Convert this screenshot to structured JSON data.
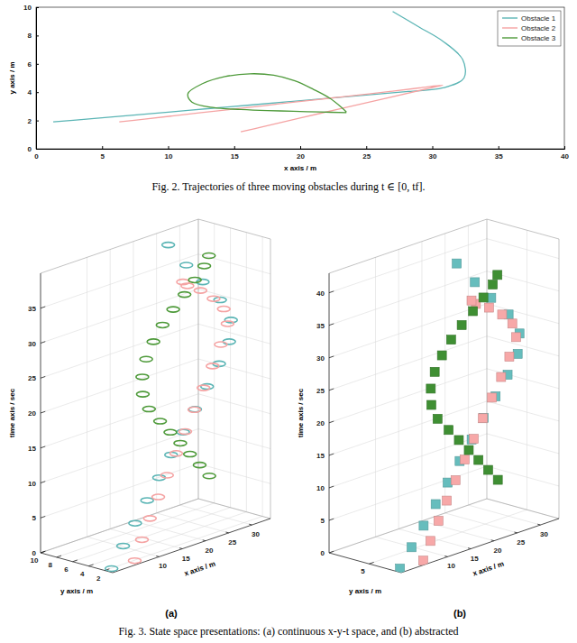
{
  "chart_data": [
    {
      "type": "line",
      "title": "Fig. 2. Trajectories of three moving obstacles during t ∈ [0, tf].",
      "x_label": "x axis / m",
      "y_label": "y axis / m",
      "xlim": [
        0,
        40
      ],
      "xticks": [
        0,
        5,
        10,
        15,
        20,
        25,
        30,
        35,
        40
      ],
      "ylim": [
        0,
        10
      ],
      "yticks": [
        0,
        2,
        4,
        6,
        8,
        10
      ],
      "legend": "top-right",
      "series": [
        {
          "name": "Obstacle 1",
          "color": "#5bb5b5",
          "x": [
            1.3,
            4.2,
            7.2,
            10.2,
            13.2,
            16.2,
            19.2,
            22.2,
            25.2,
            28.2,
            30.8,
            32.4,
            32.3,
            30.8,
            29.0,
            27.0
          ],
          "values": [
            1.9,
            2.13,
            2.37,
            2.61,
            2.85,
            3.09,
            3.33,
            3.57,
            3.81,
            4.05,
            4.3,
            5.0,
            6.3,
            7.6,
            8.6,
            9.7
          ]
        },
        {
          "name": "Obstacle 2",
          "color": "#f5a3a3",
          "x": [
            6.3,
            8.2,
            10.3,
            12.5,
            14.8,
            17.2,
            19.6,
            22.0,
            24.4,
            26.8,
            29.0,
            30.8,
            29.5,
            26.0,
            21.5,
            17.0,
            15.5
          ],
          "values": [
            1.9,
            2.1,
            2.32,
            2.55,
            2.79,
            3.04,
            3.3,
            3.55,
            3.8,
            4.05,
            4.3,
            4.5,
            4.22,
            3.46,
            2.5,
            1.52,
            1.2
          ]
        },
        {
          "name": "Obstacle 3",
          "color": "#4e9a3a",
          "x": [
            23.5,
            21.5,
            19.5,
            17.5,
            15.5,
            13.5,
            11.8,
            11.5,
            12.6,
            14.3,
            16.2,
            18.0,
            19.6,
            21.0,
            22.2,
            23.1,
            23.5
          ],
          "values": [
            2.55,
            2.6,
            2.65,
            2.7,
            2.78,
            2.9,
            3.3,
            3.9,
            4.6,
            5.1,
            5.3,
            5.2,
            4.8,
            4.2,
            3.6,
            2.95,
            2.6
          ]
        }
      ]
    },
    {
      "type": "scatter3d",
      "title": "Fig. 3. State space presentations: (a) continuous x-y-t space, and (b) abstracted",
      "panel": "(a)",
      "x_label": "x axis / m",
      "y_label": "y axis / m",
      "z_label": "time axis / sec",
      "xlim": [
        0,
        34
      ],
      "xticks": [
        10,
        15,
        20,
        25,
        30
      ],
      "ylim": [
        1,
        10
      ],
      "yticks": [
        2,
        4,
        6,
        8,
        10
      ],
      "zlim": [
        0,
        40
      ],
      "zticks": [
        0,
        5,
        10,
        15,
        20,
        25,
        30,
        35
      ],
      "marker": "circle",
      "series": [
        {
          "color": "#5bb5b5",
          "x": [
            1.3,
            4.2,
            7.2,
            10.2,
            13.2,
            16.2,
            19.2,
            22.2,
            25.2,
            28.2,
            30.8,
            32.4,
            32.3,
            30.8,
            29.0,
            27.0
          ],
          "y": [
            1.9,
            2.13,
            2.37,
            2.61,
            2.85,
            3.09,
            3.33,
            3.57,
            3.81,
            4.05,
            4.3,
            5.0,
            6.3,
            7.6,
            8.6,
            9.7
          ],
          "z": [
            0,
            2.5,
            5,
            7.5,
            10,
            12.5,
            15,
            17.5,
            20,
            22.5,
            25,
            27.5,
            30,
            32.5,
            35,
            38
          ]
        },
        {
          "color": "#f5a3a3",
          "x": [
            6.3,
            8.2,
            10.3,
            12.5,
            14.8,
            17.2,
            19.6,
            22.0,
            24.4,
            26.8,
            29.0,
            30.8,
            29.5,
            26.0,
            21.5,
            17.0,
            15.5
          ],
          "y": [
            1.9,
            2.1,
            2.32,
            2.55,
            2.79,
            3.04,
            3.3,
            3.55,
            3.8,
            4.05,
            4.3,
            4.5,
            4.22,
            3.46,
            2.5,
            1.52,
            1.2
          ],
          "z": [
            0,
            2.5,
            5,
            7.5,
            10,
            12.5,
            15,
            17.5,
            20,
            22.5,
            25,
            27.5,
            30,
            32.5,
            35,
            37,
            38
          ]
        },
        {
          "color": "#4e9a3a",
          "x": [
            23.5,
            21.5,
            19.5,
            17.5,
            15.5,
            13.5,
            11.8,
            11.5,
            12.6,
            14.3,
            16.2,
            18.0,
            19.6,
            21.0,
            22.2,
            23.1,
            23.5
          ],
          "y": [
            2.55,
            2.6,
            2.65,
            2.7,
            2.78,
            2.9,
            3.3,
            3.9,
            4.6,
            5.1,
            5.3,
            5.2,
            4.8,
            4.2,
            3.6,
            2.95,
            2.6
          ],
          "z": [
            8,
            10,
            12,
            14,
            16,
            18,
            20,
            22,
            24,
            26,
            28,
            30,
            32,
            34,
            36,
            38,
            39.5
          ]
        }
      ]
    },
    {
      "type": "scatter3d",
      "panel": "(b)",
      "x_label": "x axis / m",
      "y_label": "y axis / m",
      "z_label": "time axis / sec",
      "xlim": [
        0,
        34
      ],
      "xticks": [
        10,
        15,
        20,
        25,
        30
      ],
      "ylim": [
        1,
        10
      ],
      "yticks": [
        5
      ],
      "zlim": [
        0,
        43
      ],
      "zticks": [
        0,
        5,
        10,
        15,
        20,
        25,
        30,
        35,
        40
      ],
      "marker": "square",
      "series": [
        {
          "color": "#66bdbd",
          "x": [
            1.3,
            4.2,
            7.2,
            10.2,
            13.2,
            16.2,
            19.2,
            22.2,
            25.2,
            28.2,
            30.8,
            32.4,
            32.3,
            30.8,
            29.0,
            27.0
          ],
          "y": [
            1.9,
            2.13,
            2.37,
            2.61,
            2.85,
            3.09,
            3.33,
            3.57,
            3.81,
            4.05,
            4.3,
            5.0,
            6.3,
            7.6,
            8.6,
            9.7
          ],
          "z": [
            0,
            2.5,
            5,
            7.5,
            10,
            12.5,
            15,
            17.5,
            20,
            22.5,
            25,
            27.5,
            30,
            32.5,
            35,
            38
          ]
        },
        {
          "color": "#f7a8a8",
          "x": [
            6.3,
            8.2,
            10.3,
            12.5,
            14.8,
            17.2,
            19.6,
            22.0,
            24.4,
            26.8,
            29.0,
            30.8,
            29.5,
            26.0,
            21.5,
            17.0,
            15.5
          ],
          "y": [
            1.9,
            2.1,
            2.32,
            2.55,
            2.79,
            3.04,
            3.3,
            3.55,
            3.8,
            4.05,
            4.3,
            4.5,
            4.22,
            3.46,
            2.5,
            1.52,
            1.2
          ],
          "z": [
            0,
            2.5,
            5,
            7.5,
            10,
            12.5,
            15,
            17.5,
            20,
            22.5,
            25,
            27.5,
            30,
            32.5,
            35,
            37,
            38
          ]
        },
        {
          "color": "#3f8f33",
          "x": [
            23.5,
            21.5,
            19.5,
            17.5,
            15.5,
            13.5,
            11.8,
            11.5,
            12.6,
            14.3,
            16.2,
            18.0,
            19.6,
            21.0,
            22.2,
            23.1,
            23.5
          ],
          "y": [
            2.55,
            2.6,
            2.65,
            2.7,
            2.78,
            2.9,
            3.3,
            3.9,
            4.6,
            5.1,
            5.3,
            5.2,
            4.8,
            4.2,
            3.6,
            2.95,
            2.6
          ],
          "z": [
            8,
            10,
            12,
            14,
            16,
            18,
            20,
            22,
            24,
            26,
            28,
            30,
            32,
            34,
            36,
            38,
            39.5
          ]
        }
      ]
    }
  ]
}
